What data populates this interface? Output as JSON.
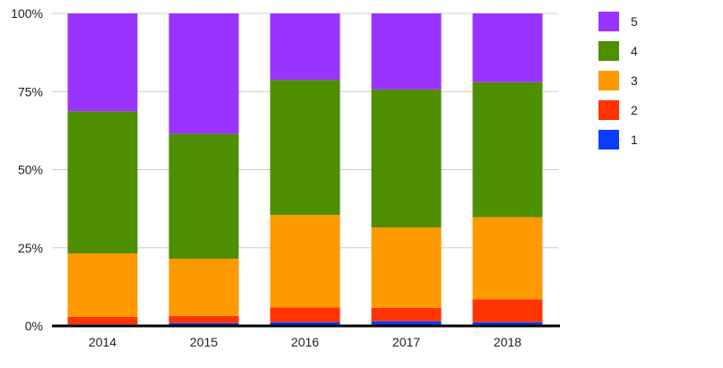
{
  "chart_data": {
    "type": "bar",
    "stacked": "percent",
    "title": "",
    "xlabel": "",
    "ylabel": "",
    "ylim": [
      0,
      100
    ],
    "yticks": [
      0,
      25,
      50,
      75,
      100
    ],
    "ytick_labels": [
      "0%",
      "25%",
      "50%",
      "75%",
      "100%"
    ],
    "grid": true,
    "legend_position": "right",
    "categories": [
      "2014",
      "2015",
      "2016",
      "2017",
      "2018"
    ],
    "series": [
      {
        "name": "1",
        "color": "#0a3dff",
        "values": [
          0.5,
          0.9,
          1.2,
          1.5,
          1.2
        ]
      },
      {
        "name": "2",
        "color": "#ff3300",
        "values": [
          2.4,
          2.3,
          4.7,
          4.3,
          7.3
        ]
      },
      {
        "name": "3",
        "color": "#ff9900",
        "values": [
          20.3,
          18.3,
          29.6,
          25.7,
          26.3
        ]
      },
      {
        "name": "4",
        "color": "#4e8f00",
        "values": [
          45.5,
          40.0,
          43.2,
          44.2,
          43.2
        ]
      },
      {
        "name": "5",
        "color": "#9933ff",
        "values": [
          31.3,
          38.5,
          21.3,
          24.3,
          22.0
        ]
      }
    ]
  }
}
